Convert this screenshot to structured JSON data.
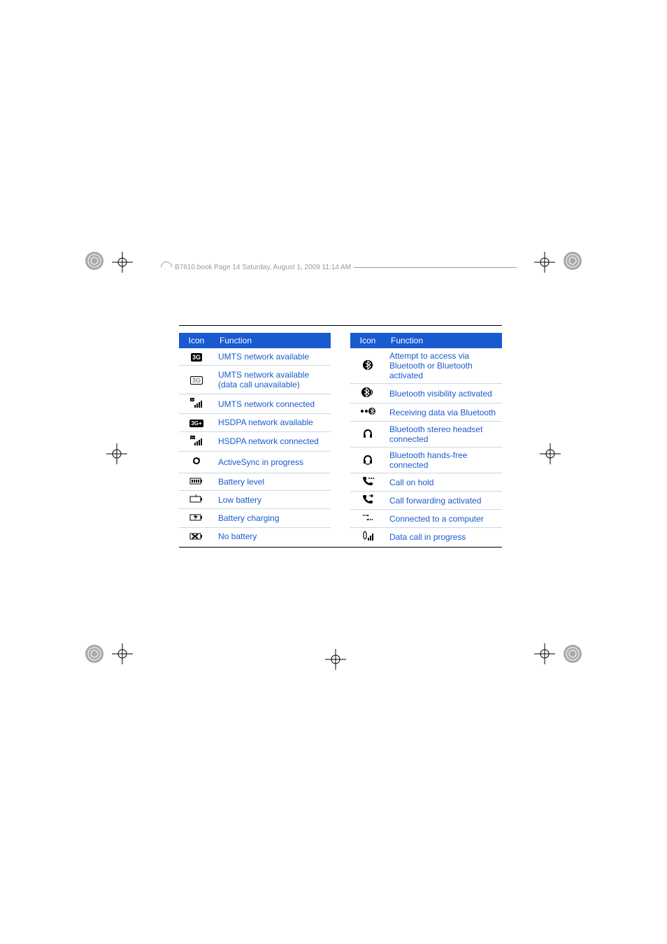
{
  "header": {
    "text": "B7610.book  Page 14  Saturday, August 1, 2009  11:14 AM"
  },
  "tables": {
    "columns": {
      "icon": "Icon",
      "function": "Function"
    },
    "left": [
      {
        "icon": "3G",
        "icon_style": "3g-solid",
        "function": "UMTS network available"
      },
      {
        "icon": "3G",
        "icon_style": "3g-outline",
        "function": "UMTS network available (data call unavailable)"
      },
      {
        "icon": "sig-bars-3g",
        "function": "UMTS network connected"
      },
      {
        "icon": "3G+",
        "icon_style": "3gplus",
        "function": "HSDPA network available"
      },
      {
        "icon": "sig-bars-3gplus",
        "function": "HSDPA network connected"
      },
      {
        "icon": "sync",
        "function": "ActiveSync in progress"
      },
      {
        "icon": "battery",
        "function": "Battery level"
      },
      {
        "icon": "battery-low",
        "function": "Low battery"
      },
      {
        "icon": "battery-charge",
        "function": "Battery charging"
      },
      {
        "icon": "battery-none",
        "function": "No battery"
      }
    ],
    "right": [
      {
        "icon": "bt",
        "function": "Attempt to access via Bluetooth or Bluetooth activated"
      },
      {
        "icon": "bt-vis",
        "function": "Bluetooth visibility activated"
      },
      {
        "icon": "bt-recv",
        "function": "Receiving data via Bluetooth"
      },
      {
        "icon": "bt-headset",
        "function": "Bluetooth stereo headset connected"
      },
      {
        "icon": "bt-handsfree",
        "function": "Bluetooth hands-free connected"
      },
      {
        "icon": "call-hold",
        "function": "Call on hold"
      },
      {
        "icon": "call-fwd",
        "function": "Call forwarding activated"
      },
      {
        "icon": "pc-connect",
        "function": "Connected to a computer"
      },
      {
        "icon": "data-call",
        "function": "Data call in progress"
      }
    ]
  },
  "colors": {
    "header_bg": "#1a5ad0",
    "header_fg": "#ffffff",
    "cell_fg": "#1a5ad0",
    "row_border": "#c9d7e8",
    "page_rule": "#000000",
    "meta_text": "#999999"
  },
  "icons": {
    "sig-bars-3g": "<svg width='18' height='14' viewBox='0 0 18 14'><rect x='0' y='0' width='6' height='5' fill='#000'/><text x='1' y='4' font-size='4' fill='#fff'>3G</text><rect x='6' y='10' width='2' height='4' fill='#000'/><rect x='9' y='8' width='2' height='6' fill='#000'/><rect x='12' y='6' width='2' height='8' fill='#000'/><rect x='15' y='4' width='2' height='10' fill='#000'/></svg>",
    "sig-bars-3gplus": "<svg width='18' height='14' viewBox='0 0 18 14'><rect x='0' y='0' width='7' height='5' fill='#000'/><text x='0.5' y='4' font-size='4' fill='#fff'>3G+</text><rect x='6' y='10' width='2' height='4' fill='#000'/><rect x='9' y='8' width='2' height='6' fill='#000'/><rect x='12' y='6' width='2' height='8' fill='#000'/><rect x='15' y='4' width='2' height='10' fill='#000'/></svg>",
    "sync": "<svg width='16' height='16' viewBox='0 0 16 16'><path d='M4 8 A4 4 0 0 1 12 8' stroke='#000' stroke-width='2' fill='none'/><path d='M12 8 A4 4 0 0 1 4 8' stroke='#000' stroke-width='2' fill='none'/><path d='M10 4 L13 5 L11 8 Z' fill='#000'/><path d='M6 12 L3 11 L5 8 Z' fill='#000'/></svg>",
    "battery": "<svg width='20' height='10' viewBox='0 0 20 10'><rect x='1' y='1' width='15' height='8' stroke='#000' fill='none'/><rect x='16' y='3' width='2' height='4' fill='#000'/><rect x='3' y='3' width='2' height='4' fill='#000'/><rect x='6' y='3' width='2' height='4' fill='#000'/><rect x='9' y='3' width='2' height='4' fill='#000'/><rect x='12' y='3' width='2' height='4' fill='#000'/></svg>",
    "battery-low": "<svg width='20' height='12' viewBox='0 0 20 12'><rect x='1' y='3' width='15' height='8' stroke='#000' fill='none'/><rect x='16' y='5' width='2' height='4' fill='#000'/><text x='8' y='4' font-size='7' fill='#000' font-weight='bold'>!</text></svg>",
    "battery-charge": "<svg width='20' height='12' viewBox='0 0 20 12'><rect x='1' y='3' width='15' height='8' stroke='#000' fill='none'/><rect x='16' y='5' width='2' height='4' fill='#000'/><path d='M8 3 L6 7 L9 7 L7 11 L12 5 L9 5 Z' fill='#000'/></svg>",
    "battery-none": "<svg width='20' height='12' viewBox='0 0 20 12'><rect x='1' y='3' width='15' height='8' stroke='#000' fill='none'/><rect x='16' y='5' width='2' height='4' fill='#000'/><line x1='4' y1='4' x2='12' y2='10' stroke='#000' stroke-width='2'/><line x1='12' y1='4' x2='4' y2='10' stroke='#000' stroke-width='2'/></svg>",
    "bt": "<svg width='16' height='16' viewBox='0 0 16 16'><circle cx='8' cy='8' r='7' fill='#000'/><path d='M8 2 L8 14 L12 10 L5 5 M8 2 L12 6 L5 11' stroke='#fff' stroke-width='1.2' fill='none'/></svg>",
    "bt-vis": "<svg width='20' height='16' viewBox='0 0 20 16'><circle cx='8' cy='8' r='7' fill='#000'/><path d='M8 2 L8 14 L12 10 L5 5 M8 2 L12 6 L5 11' stroke='#fff' stroke-width='1.2' fill='none'/><path d='M15 4 Q18 8 15 12' stroke='#000' fill='none'/><path d='M16 6 Q17.5 8 16 10' stroke='#000' fill='none'/></svg>",
    "bt-recv": "<svg width='22' height='14' viewBox='0 0 22 14'><circle cx='3' cy='7' r='2' fill='#000'/><circle cx='9' cy='7' r='2' fill='#000'/><circle cx='17' cy='7' r='5' fill='#000'/><path d='M17 3 L17 11 L20 8.5 L14.5 5 M17 3 L20 5.5 L14.5 9' stroke='#fff' stroke-width='0.9' fill='none'/></svg>",
    "bt-headset": "<svg width='16' height='16' viewBox='0 0 16 16'><path d='M3 10 Q3 3 8 3 Q13 3 13 10' stroke='#000' stroke-width='2' fill='none'/><rect x='2' y='9' width='3' height='5' rx='1' fill='#000'/><rect x='11' y='9' width='3' height='5' rx='1' fill='#000'/></svg>",
    "bt-handsfree": "<svg width='18' height='16' viewBox='0 0 18 16'><path d='M4 10 Q4 3 9 3 Q14 3 14 10' stroke='#000' stroke-width='2' fill='none'/><rect x='3' y='9' width='3' height='5' rx='1' fill='#000'/><rect x='12' y='9' width='3' height='5' rx='1' fill='#000'/><path d='M6 14 Q9 16 12 14' stroke='#000' stroke-width='1.2' fill='none'/></svg>",
    "call-hold": "<svg width='18' height='14' viewBox='0 0 18 14'><path d='M2 3 Q2 1 4 1 L6 1 Q7 1 7 3 L7 4 Q7 5 6 6 Q8 9 11 10 Q12 9 13 9 L15 9 Q16 9 16 11 Q16 13 14 13 Q5 13 2 3 Z' fill='#000'/><circle cx='11' cy='3' r='1' fill='#000'/><circle cx='14' cy='3' r='1' fill='#000'/><circle cx='17' cy='3' r='1' fill='#000'/></svg>",
    "call-fwd": "<svg width='18' height='14' viewBox='0 0 18 14'><path d='M2 3 Q2 1 4 1 L6 1 Q7 1 7 3 L7 4 Q7 5 6 6 Q8 9 11 10 Q12 9 13 9 L15 9 Q16 9 16 11 Q16 13 14 13 Q5 13 2 3 Z' fill='#000'/><path d='M11 2 L16 2 L14 0 M16 2 L14 4' stroke='#000' stroke-width='1.3' fill='none'/></svg>",
    "pc-connect": "<svg width='18' height='14' viewBox='0 0 18 14'><path d='M2 4 L10 4 L8 3 M10 4 L8 5' stroke='#000' stroke-width='1.5' fill='none' stroke-dasharray='1.5 1'/><path d='M16 10 L8 10 L10 9 M8 10 L10 11' stroke='#000' stroke-width='1.5' fill='none' stroke-dasharray='1.5 1'/></svg>",
    "data-call": "<svg width='18' height='14' viewBox='0 0 18 14'><path d='M3 3 L3 10 M7 3 L7 10' stroke='#000' stroke-width='1.2'/><path d='M3 3 L5 1 L7 3 M3 10 L5 12 L7 10' stroke='#000' stroke-width='1.2' fill='none'/><rect x='9' y='10' width='2' height='4' fill='#000'/><rect x='12' y='7' width='2' height='7' fill='#000'/><rect x='15' y='4' width='2' height='10' fill='#000'/></svg>"
  }
}
